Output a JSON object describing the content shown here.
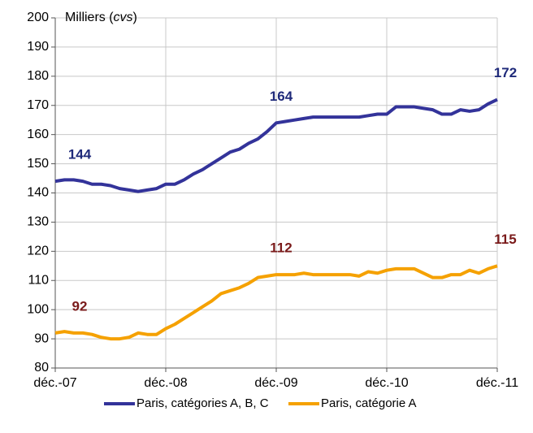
{
  "chart_data": {
    "type": "line",
    "unit_label": [
      "Milliers (",
      "cvs",
      ")"
    ],
    "categories": [
      "déc.-07",
      null,
      null,
      null,
      null,
      null,
      null,
      null,
      null,
      null,
      null,
      null,
      "déc.-08",
      null,
      null,
      null,
      null,
      null,
      null,
      null,
      null,
      null,
      null,
      null,
      "déc.-09",
      null,
      null,
      null,
      null,
      null,
      null,
      null,
      null,
      null,
      null,
      null,
      "déc.-10",
      null,
      null,
      null,
      null,
      null,
      null,
      null,
      null,
      null,
      null,
      null,
      "déc.-11"
    ],
    "series": [
      {
        "name": "Paris, catégories A, B, C",
        "color": "#33339a",
        "label_color": "#1f2a7a",
        "values": [
          144,
          144.5,
          144.5,
          144,
          143,
          143,
          142.5,
          141.5,
          141,
          140.5,
          141,
          141.5,
          143,
          143,
          144.5,
          146.5,
          148,
          150,
          152,
          154,
          155,
          157,
          158.5,
          161,
          164,
          164.5,
          165,
          165.5,
          166,
          166,
          166,
          166,
          166,
          166,
          166.5,
          167,
          167,
          169.5,
          169.5,
          169.5,
          169,
          168.5,
          167,
          167,
          168.5,
          168,
          168.5,
          170.5,
          172
        ],
        "value_labels": [
          "144",
          null,
          null,
          null,
          null,
          null,
          null,
          null,
          null,
          null,
          null,
          null,
          null,
          null,
          null,
          null,
          null,
          null,
          null,
          null,
          null,
          null,
          null,
          null,
          "164",
          null,
          null,
          null,
          null,
          null,
          null,
          null,
          null,
          null,
          null,
          null,
          null,
          null,
          null,
          null,
          null,
          null,
          null,
          null,
          null,
          null,
          null,
          null,
          "172"
        ]
      },
      {
        "name": "Paris, catégorie A",
        "color": "#f5a100",
        "label_color": "#7a1a1a",
        "values": [
          92,
          92.5,
          92,
          92,
          91.5,
          90.5,
          90,
          90,
          90.5,
          92,
          91.5,
          91.5,
          93.5,
          95,
          97,
          99,
          101,
          103,
          105.5,
          106.5,
          107.5,
          109,
          111,
          111.5,
          112,
          112,
          112,
          112.5,
          112,
          112,
          112,
          112,
          112,
          111.5,
          113,
          112.5,
          113.5,
          114,
          114,
          114,
          112.5,
          111,
          111,
          112,
          112,
          113.5,
          112.5,
          114,
          115
        ],
        "value_labels": [
          "92",
          null,
          null,
          null,
          null,
          null,
          null,
          null,
          null,
          null,
          null,
          null,
          null,
          null,
          null,
          null,
          null,
          null,
          null,
          null,
          null,
          null,
          null,
          null,
          "112",
          null,
          null,
          null,
          null,
          null,
          null,
          null,
          null,
          null,
          null,
          null,
          null,
          null,
          null,
          null,
          null,
          null,
          null,
          null,
          null,
          null,
          null,
          null,
          "115"
        ]
      }
    ],
    "ylim": [
      80,
      200
    ],
    "yticks": [
      80,
      90,
      100,
      110,
      120,
      130,
      140,
      150,
      160,
      170,
      180,
      190,
      200
    ],
    "grid": true,
    "legend": "bottom"
  }
}
